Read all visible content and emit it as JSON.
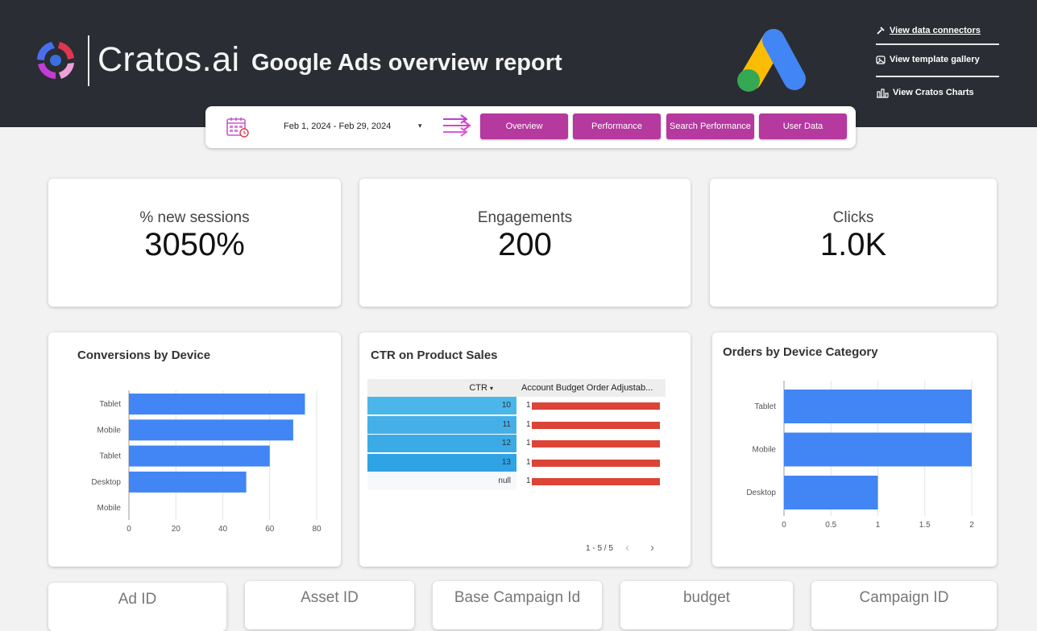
{
  "header": {
    "brand": "Cratos.ai",
    "title": "Google Ads overview report",
    "links": {
      "data_connectors": "View data connectors",
      "template_gallery": "View template gallery",
      "cratos_charts": "View Cratos Charts"
    },
    "icons": [
      "wrench-icon",
      "gallery-icon",
      "bar-chart-icon",
      "calendar-icon",
      "arrows-icon",
      "google-ads-logo"
    ]
  },
  "filters": {
    "date_range": "Feb 1, 2024 - Feb 29, 2024",
    "nav": [
      "Overview",
      "Performance",
      "Search Performance",
      "User Data"
    ]
  },
  "colors": {
    "header_bg": "#2a2d33",
    "nav_button": "#b5399e",
    "bar_blue": "#4285f4",
    "bar_red": "#db4437"
  },
  "kpis": [
    {
      "label": "% new sessions",
      "value": "3050%"
    },
    {
      "label": "Engagements",
      "value": "200"
    },
    {
      "label": "Clicks",
      "value": "1.0K"
    }
  ],
  "charts": {
    "conversions_title": "Conversions by Device",
    "ctr_title": "CTR on Product Sales",
    "orders_title": "Orders by Device Category"
  },
  "chart_data": [
    {
      "type": "bar",
      "orientation": "horizontal",
      "title": "Conversions by Device",
      "categories": [
        "Tablet",
        "Mobile",
        "Tablet",
        "Desktop",
        "Mobile"
      ],
      "values": [
        75,
        70,
        60,
        50,
        0
      ],
      "xticks": [
        "0",
        "20",
        "40",
        "60",
        "80"
      ],
      "xlim": [
        0,
        80
      ],
      "grid": true
    },
    {
      "type": "table",
      "title": "CTR on Product Sales",
      "columns": [
        "CTR",
        "Account Budget Order Adjustab..."
      ],
      "sort_indicator": "▾",
      "rows": [
        {
          "ctr": "10",
          "budget": "1"
        },
        {
          "ctr": "11",
          "budget": "1"
        },
        {
          "ctr": "12",
          "budget": "1"
        },
        {
          "ctr": "13",
          "budget": "1"
        },
        {
          "ctr": "null",
          "budget": "1"
        }
      ],
      "pagination": "1 - 5 / 5"
    },
    {
      "type": "bar",
      "orientation": "horizontal",
      "title": "Orders by Device Category",
      "categories": [
        "Tablet",
        "Mobile",
        "Desktop"
      ],
      "values": [
        2,
        2,
        1
      ],
      "xticks": [
        "0",
        "0.5",
        "1",
        "1.5",
        "2"
      ],
      "xlim": [
        0,
        2
      ],
      "grid": true
    }
  ],
  "bottom_cards": [
    "Ad ID",
    "Asset ID",
    "Base Campaign Id",
    "budget",
    "Campaign ID"
  ]
}
